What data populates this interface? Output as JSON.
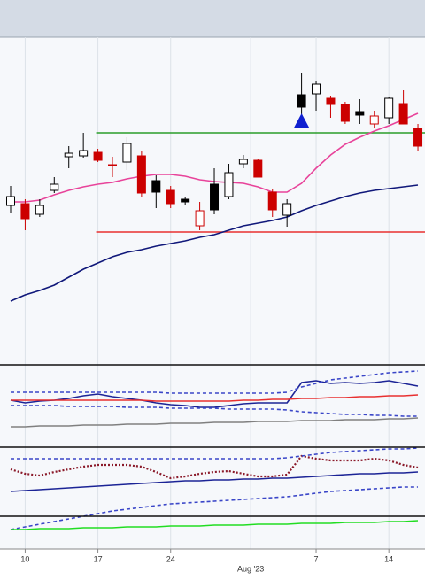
{
  "chart_data": {
    "type": "candlestick",
    "categories": [
      null,
      "10",
      null,
      null,
      null,
      null,
      "17",
      null,
      null,
      null,
      null,
      "24",
      null,
      null,
      null,
      null,
      null,
      null,
      null,
      null,
      null,
      "7",
      null,
      null,
      null,
      null,
      "14",
      null,
      null
    ],
    "month_label": "Aug '23",
    "open": [
      178,
      180,
      168,
      195,
      233,
      234,
      238,
      224,
      227,
      234,
      206,
      195,
      185,
      155,
      202,
      188,
      225,
      229,
      193,
      167,
      303,
      304,
      299,
      292,
      284,
      270,
      277,
      293,
      265
    ],
    "high": [
      200,
      185,
      185,
      210,
      245,
      260,
      242,
      233,
      255,
      240,
      212,
      200,
      188,
      182,
      220,
      225,
      235,
      230,
      197,
      185,
      328,
      318,
      302,
      295,
      298,
      285,
      300,
      308,
      270
    ],
    "low": [
      170,
      150,
      165,
      192,
      220,
      232,
      227,
      210,
      218,
      188,
      175,
      175,
      178,
      150,
      168,
      185,
      220,
      210,
      165,
      154,
      280,
      285,
      277,
      270,
      270,
      265,
      270,
      270,
      240
    ],
    "close": [
      188,
      163,
      178,
      202,
      237,
      240,
      229,
      223,
      248,
      192,
      193,
      180,
      182,
      172,
      173,
      215,
      230,
      210,
      173,
      180,
      289,
      315,
      292,
      273,
      280,
      279,
      299,
      270,
      245
    ],
    "candle_colors": [
      "#000000",
      "#cc0000",
      "#000000",
      "#000000",
      "#000000",
      "#000000",
      "#cc0000",
      "#cc0000",
      "#000000",
      "#cc0000",
      "#000000",
      "#cc0000",
      "#000000",
      "#cc0000",
      "#000000",
      "#000000",
      "#000000",
      "#cc0000",
      "#cc0000",
      "#000000",
      "#000000",
      "#000000",
      "#cc0000",
      "#cc0000",
      "#000000",
      "#cc0000",
      "#000000",
      "#cc0000",
      "#cc0000"
    ],
    "ylim": [
      0,
      368
    ],
    "overlays": [
      {
        "color": "#e8439a",
        "values": [
          182,
          182,
          184,
          190,
          195,
          199,
          202,
          204,
          208,
          211,
          213,
          213,
          211,
          207,
          205,
          204,
          203,
          199,
          193,
          193,
          203,
          220,
          235,
          247,
          255,
          262,
          268,
          275,
          282
        ]
      },
      {
        "color": "#10187a",
        "values": [
          70,
          77,
          82,
          88,
          97,
          106,
          113,
          120,
          125,
          128,
          132,
          135,
          138,
          142,
          145,
          150,
          155,
          158,
          161,
          165,
          172,
          178,
          183,
          188,
          192,
          195,
          197,
          199,
          201
        ]
      }
    ],
    "hlines": [
      {
        "value": 260,
        "color": "#2a9d2a"
      },
      {
        "value": 148,
        "color": "#e83030"
      }
    ],
    "signal": {
      "color": "#1020d0",
      "values": [
        null,
        null,
        null,
        null,
        null,
        null,
        null,
        null,
        null,
        null,
        null,
        null,
        null,
        null,
        null,
        null,
        null,
        null,
        null,
        null,
        273,
        null,
        null,
        null,
        null,
        null,
        null,
        null,
        null
      ]
    },
    "panels": [
      {
        "ylim": [
          0,
          93
        ],
        "series": [
          {
            "color": "#1c2496",
            "style": "solid",
            "values": [
              53,
              50,
              52,
              53,
              55,
              58,
              60,
              57,
              55,
              53,
              50,
              48,
              47,
              45,
              45,
              47,
              49,
              50,
              50,
              50,
              73,
              75,
              72,
              73,
              72,
              73,
              75,
              72,
              69
            ]
          },
          {
            "color": "#e83030",
            "style": "solid",
            "values": [
              53,
              53,
              53,
              53,
              53,
              53,
              53,
              53,
              53,
              53,
              52,
              52,
              52,
              52,
              52,
              52,
              53,
              53,
              54,
              54,
              55,
              55,
              56,
              56,
              57,
              57,
              58,
              58,
              59
            ]
          },
          {
            "color": "#3a46c8",
            "style": "dashed",
            "values": [
              62,
              62,
              62,
              62,
              62,
              62,
              62,
              62,
              62,
              62,
              62,
              61,
              61,
              61,
              61,
              61,
              61,
              61,
              61,
              62,
              68,
              72,
              76,
              78,
              80,
              82,
              84,
              85,
              86
            ]
          },
          {
            "color": "#3a46c8",
            "style": "dashed",
            "values": [
              47,
              47,
              47,
              47,
              46,
              46,
              46,
              46,
              45,
              45,
              45,
              44,
              44,
              44,
              44,
              43,
              43,
              43,
              43,
              42,
              40,
              39,
              38,
              37,
              37,
              36,
              36,
              35,
              35
            ]
          },
          {
            "color": "#808080",
            "style": "solid",
            "values": [
              23,
              23,
              24,
              24,
              24,
              25,
              25,
              25,
              26,
              26,
              26,
              27,
              27,
              27,
              28,
              28,
              28,
              29,
              29,
              29,
              30,
              30,
              30,
              31,
              31,
              31,
              32,
              32,
              33
            ]
          }
        ]
      },
      {
        "ylim": [
          0,
          115
        ],
        "series": [
          {
            "color": "#8b1a2a",
            "style": "dotted",
            "values": [
              90,
              85,
              83,
              87,
              90,
              93,
              95,
              95,
              95,
              93,
              87,
              80,
              82,
              85,
              87,
              88,
              85,
              82,
              82,
              84,
              105,
              102,
              100,
              100,
              100,
              102,
              100,
              95,
              92
            ]
          },
          {
            "color": "#1c2496",
            "style": "solid",
            "values": [
              65,
              66,
              67,
              68,
              69,
              70,
              71,
              72,
              73,
              74,
              75,
              76,
              77,
              77,
              78,
              78,
              79,
              79,
              80,
              80,
              81,
              82,
              83,
              84,
              85,
              85,
              86,
              86,
              87
            ]
          },
          {
            "color": "#3a46c8",
            "style": "dashed",
            "values": [
              102,
              102,
              102,
              102,
              102,
              102,
              102,
              102,
              102,
              102,
              102,
              102,
              102,
              102,
              102,
              102,
              102,
              102,
              102,
              103,
              105,
              107,
              109,
              110,
              111,
              112,
              113,
              113,
              114
            ]
          },
          {
            "color": "#3a46c8",
            "style": "dashed",
            "values": [
              22,
              25,
              28,
              31,
              34,
              37,
              40,
              43,
              45,
              47,
              49,
              51,
              52,
              53,
              54,
              55,
              56,
              57,
              58,
              59,
              61,
              63,
              65,
              66,
              67,
              68,
              69,
              70,
              70
            ]
          },
          {
            "color": "#22dd22",
            "style": "solid",
            "values": [
              22,
              22,
              23,
              23,
              23,
              24,
              24,
              24,
              25,
              25,
              25,
              26,
              26,
              26,
              27,
              27,
              27,
              28,
              28,
              28,
              29,
              29,
              29,
              30,
              30,
              30,
              31,
              31,
              32
            ]
          }
        ]
      }
    ]
  }
}
